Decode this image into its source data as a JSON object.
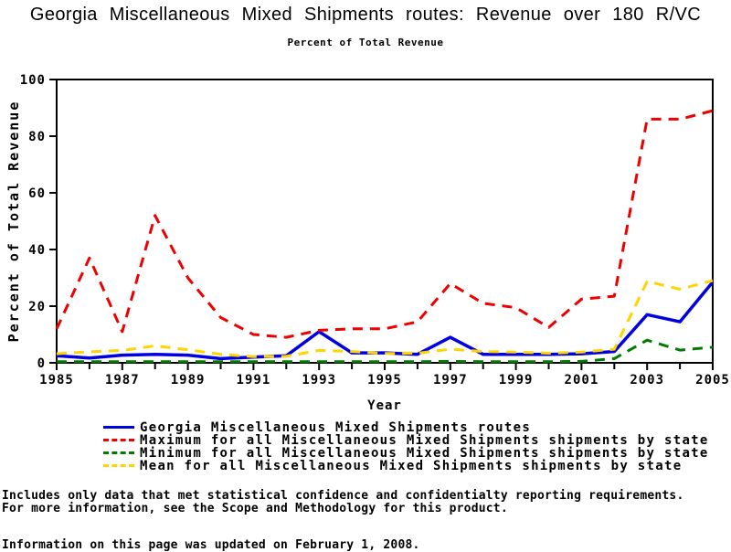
{
  "title": "Georgia Miscellaneous Mixed Shipments routes: Revenue over 180 R/VC",
  "subtitle": "Percent of Total Revenue",
  "chart_data": {
    "type": "line",
    "title": "Georgia Miscellaneous Mixed Shipments routes: Revenue over 180 R/VC",
    "subtitle": "Percent of Total Revenue",
    "xlabel": "Year",
    "ylabel": "Percent of Total Revenue",
    "xlim": [
      1985,
      2005
    ],
    "ylim": [
      0,
      100
    ],
    "y_ticks": [
      0,
      20,
      40,
      60,
      80,
      100
    ],
    "x_major_ticks": [
      1985,
      1987,
      1989,
      1991,
      1993,
      1995,
      1997,
      1999,
      2001,
      2003,
      2005
    ],
    "x_minor_step": 1,
    "grid": false,
    "legend_position": "bottom",
    "frame_color": "#000000",
    "x": [
      1985,
      1986,
      1987,
      1988,
      1989,
      1990,
      1991,
      1992,
      1993,
      1994,
      1995,
      1996,
      1997,
      1998,
      1999,
      2000,
      2001,
      2002,
      2003,
      2004,
      2005
    ],
    "series": [
      {
        "name": "Georgia Miscellaneous Mixed Shipments routes",
        "color": "#0000E0",
        "style": "solid",
        "values": [
          2.5,
          1.7,
          2.7,
          3.0,
          2.7,
          1.5,
          2.0,
          2.5,
          11.0,
          3.5,
          3.5,
          3.0,
          9.0,
          3.0,
          3.0,
          3.0,
          3.2,
          4.0,
          17.0,
          14.5,
          28.5
        ]
      },
      {
        "name": "Maximum for all Miscellaneous Mixed Shipments shipments by state",
        "color": "#EE0000",
        "style": "dashed",
        "values": [
          12.0,
          37.0,
          11.0,
          52.0,
          30.0,
          16.0,
          10.0,
          9.0,
          11.5,
          12.0,
          12.0,
          14.5,
          28.0,
          21.0,
          19.5,
          12.5,
          22.5,
          23.5,
          86.0,
          86.0,
          89.0
        ]
      },
      {
        "name": "Minimum for all Miscellaneous Mixed Shipments shipments by state",
        "color": "#007A00",
        "style": "dashed",
        "values": [
          0.4,
          0.4,
          0.4,
          0.4,
          0.4,
          0.4,
          0.4,
          0.4,
          0.4,
          0.4,
          0.4,
          0.4,
          0.5,
          0.4,
          0.4,
          0.4,
          0.5,
          1.5,
          8.0,
          4.5,
          5.5
        ]
      },
      {
        "name": "Mean for all Miscellaneous Mixed Shipments shipments by state",
        "color": "#FFD400",
        "style": "dashed",
        "values": [
          3.2,
          3.9,
          4.4,
          6.0,
          4.6,
          3.0,
          2.2,
          2.3,
          4.4,
          4.0,
          3.3,
          3.4,
          4.8,
          4.0,
          3.8,
          3.4,
          3.8,
          4.8,
          28.7,
          26.0,
          29.0
        ]
      }
    ]
  },
  "footnotes": {
    "line1": "Includes only data that met statistical confidence and confidentialty reporting requirements.",
    "line2": "For more information, see the Scope and Methodology for this product.",
    "updated": "Information on this page was updated on February 1, 2008."
  }
}
